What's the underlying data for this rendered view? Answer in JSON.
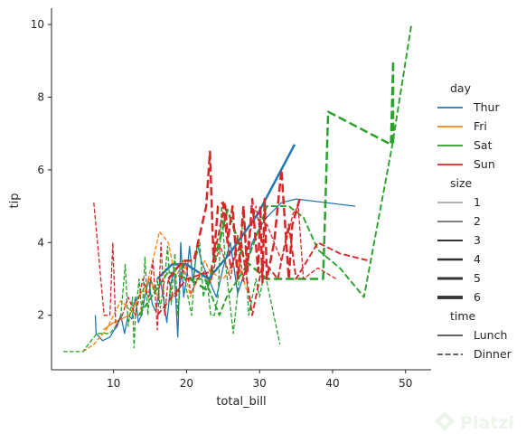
{
  "chart_data": {
    "type": "line",
    "xlabel": "total_bill",
    "ylabel": "tip",
    "xlim": [
      1.5,
      53.5
    ],
    "ylim": [
      0.5,
      10.45
    ],
    "xticks": [
      10,
      20,
      30,
      40,
      50
    ],
    "yticks": [
      2,
      4,
      6,
      8,
      10
    ],
    "grid": false,
    "legend_placement": "right",
    "hue_title": "day",
    "hue": [
      {
        "name": "Thur",
        "color": "#1f77b4"
      },
      {
        "name": "Fri",
        "color": "#ff7f0e"
      },
      {
        "name": "Sat",
        "color": "#2ca02c"
      },
      {
        "name": "Sun",
        "color": "#d62728"
      }
    ],
    "size_title": "size",
    "sizes": [
      {
        "name": "1",
        "width": 0.8
      },
      {
        "name": "2",
        "width": 1.3
      },
      {
        "name": "3",
        "width": 1.9
      },
      {
        "name": "4",
        "width": 2.5
      },
      {
        "name": "5",
        "width": 3.1
      },
      {
        "name": "6",
        "width": 3.7
      }
    ],
    "style_title": "time",
    "styles": [
      {
        "name": "Lunch",
        "dash": "solid"
      },
      {
        "name": "Dinner",
        "dash": "dashed"
      }
    ],
    "series": [
      {
        "day": "Thur",
        "time": "Lunch",
        "size": "2",
        "points": [
          [
            7.5,
            2.0
          ],
          [
            7.6,
            1.5
          ],
          [
            8.5,
            1.3
          ],
          [
            9.5,
            1.4
          ],
          [
            10.1,
            1.6
          ],
          [
            10.5,
            1.7
          ],
          [
            11.0,
            2.0
          ],
          [
            11.5,
            1.5
          ],
          [
            12.0,
            2.0
          ],
          [
            12.5,
            1.9
          ],
          [
            13.0,
            2.5
          ],
          [
            13.4,
            1.8
          ],
          [
            13.8,
            2.0
          ],
          [
            14.3,
            2.5
          ],
          [
            14.8,
            3.0
          ],
          [
            15.3,
            2.3
          ],
          [
            15.8,
            2.1
          ],
          [
            16.4,
            3.0
          ],
          [
            16.8,
            2.5
          ],
          [
            17.3,
            1.8
          ],
          [
            17.8,
            2.8
          ],
          [
            18.3,
            3.3
          ],
          [
            18.8,
            1.4
          ],
          [
            19.2,
            4.0
          ],
          [
            19.6,
            2.5
          ],
          [
            20.0,
            3.0
          ],
          [
            20.4,
            3.9
          ],
          [
            20.9,
            2.9
          ],
          [
            21.5,
            4.0
          ],
          [
            22.0,
            3.5
          ],
          [
            23.0,
            3.0
          ],
          [
            24.1,
            2.5
          ],
          [
            25.0,
            3.3
          ],
          [
            26.0,
            4.0
          ],
          [
            27.0,
            2.6
          ],
          [
            28.0,
            3.2
          ],
          [
            29.0,
            4.0
          ],
          [
            30.0,
            4.4
          ],
          [
            31.0,
            4.7
          ],
          [
            33.0,
            5.1
          ],
          [
            35.0,
            5.2
          ],
          [
            43.1,
            5.0
          ]
        ]
      },
      {
        "day": "Thur",
        "time": "Lunch",
        "size": "4",
        "points": [
          [
            16.0,
            3.0
          ],
          [
            18.0,
            3.4
          ],
          [
            20.0,
            3.4
          ],
          [
            23.0,
            3.0
          ],
          [
            25.9,
            3.7
          ],
          [
            29.8,
            4.8
          ],
          [
            34.8,
            6.7
          ]
        ]
      },
      {
        "day": "Fri",
        "time": "Lunch",
        "size": "2",
        "points": [
          [
            8.6,
            1.6
          ],
          [
            10.0,
            1.8
          ],
          [
            12.2,
            2.0
          ],
          [
            13.4,
            2.5
          ],
          [
            15.0,
            3.0
          ],
          [
            16.3,
            2.4
          ]
        ]
      },
      {
        "day": "Fri",
        "time": "Dinner",
        "size": "2",
        "points": [
          [
            5.8,
            1.0
          ],
          [
            7.3,
            1.2
          ],
          [
            9.0,
            1.6
          ],
          [
            11.0,
            2.4
          ],
          [
            12.5,
            2.1
          ],
          [
            13.5,
            2.0
          ],
          [
            15.0,
            3.2
          ],
          [
            16.3,
            4.3
          ],
          [
            17.5,
            4.0
          ],
          [
            18.5,
            3.0
          ],
          [
            19.5,
            3.5
          ],
          [
            20.5,
            2.5
          ],
          [
            22.5,
            3.5
          ],
          [
            23.2,
            3.2
          ],
          [
            25.0,
            3.0
          ],
          [
            27.0,
            3.5
          ],
          [
            28.2,
            2.7
          ]
        ]
      },
      {
        "day": "Sat",
        "time": "Dinner",
        "size": "2",
        "points": [
          [
            3.1,
            1.0
          ],
          [
            5.8,
            1.0
          ],
          [
            7.7,
            1.5
          ],
          [
            9.5,
            1.5
          ],
          [
            10.3,
            1.7
          ],
          [
            11.0,
            2.0
          ],
          [
            11.6,
            3.4
          ],
          [
            12.0,
            1.7
          ],
          [
            12.6,
            2.5
          ],
          [
            12.8,
            1.1
          ],
          [
            13.0,
            2.0
          ],
          [
            13.5,
            3.0
          ],
          [
            13.9,
            2.0
          ],
          [
            14.3,
            3.6
          ],
          [
            14.7,
            2.0
          ],
          [
            15.1,
            3.0
          ],
          [
            15.6,
            2.6
          ],
          [
            16.0,
            3.0
          ],
          [
            16.4,
            2.2
          ],
          [
            17.0,
            3.0
          ],
          [
            17.4,
            3.9
          ],
          [
            17.9,
            2.3
          ],
          [
            18.4,
            3.7
          ],
          [
            18.8,
            2.0
          ],
          [
            19.4,
            3.5
          ],
          [
            20.0,
            2.7
          ],
          [
            20.7,
            2.0
          ],
          [
            21.2,
            3.5
          ],
          [
            21.8,
            4.0
          ],
          [
            22.3,
            2.5
          ],
          [
            22.8,
            3.0
          ],
          [
            23.3,
            2.0
          ],
          [
            23.8,
            2.0
          ],
          [
            24.3,
            2.5
          ],
          [
            24.8,
            5.0
          ],
          [
            25.3,
            3.5
          ],
          [
            26.4,
            1.5
          ],
          [
            27.2,
            3.0
          ],
          [
            27.8,
            5.0
          ],
          [
            28.5,
            2.0
          ],
          [
            29.5,
            3.0
          ],
          [
            30.0,
            2.5
          ],
          [
            30.5,
            3.0
          ],
          [
            30.9,
            3.0
          ],
          [
            32.8,
            1.2
          ]
        ]
      },
      {
        "day": "Sat",
        "time": "Dinner",
        "size": "3",
        "points": [
          [
            13.5,
            2.0
          ],
          [
            15.5,
            2.6
          ],
          [
            17.5,
            3.2
          ],
          [
            20.0,
            3.0
          ],
          [
            22.5,
            3.0
          ],
          [
            24.5,
            2.0
          ],
          [
            25.5,
            2.5
          ],
          [
            28.0,
            3.3
          ],
          [
            31.0,
            5.0
          ],
          [
            34.0,
            5.0
          ],
          [
            36.0,
            4.7
          ],
          [
            38.0,
            3.8
          ],
          [
            41.0,
            3.3
          ],
          [
            44.3,
            2.5
          ],
          [
            48.2,
            6.7
          ],
          [
            50.8,
            10.0
          ]
        ]
      },
      {
        "day": "Sat",
        "time": "Dinner",
        "size": "4",
        "points": [
          [
            20.4,
            3.0
          ],
          [
            22.8,
            2.7
          ],
          [
            25.6,
            4.9
          ],
          [
            28.0,
            3.5
          ],
          [
            31.0,
            3.0
          ],
          [
            36.0,
            3.0
          ],
          [
            38.7,
            3.0
          ],
          [
            39.4,
            7.6
          ],
          [
            48.0,
            6.7
          ],
          [
            48.3,
            9.0
          ],
          [
            48.3,
            6.7
          ]
        ]
      },
      {
        "day": "Sun",
        "time": "Dinner",
        "size": "2",
        "points": [
          [
            7.3,
            5.1
          ],
          [
            8.7,
            2.0
          ],
          [
            9.5,
            2.0
          ],
          [
            9.9,
            4.0
          ],
          [
            10.3,
            1.7
          ],
          [
            11.2,
            2.0
          ],
          [
            12.0,
            2.5
          ],
          [
            13.0,
            2.0
          ],
          [
            14.0,
            3.0
          ],
          [
            14.8,
            2.5
          ],
          [
            15.4,
            3.5
          ],
          [
            16.0,
            1.6
          ],
          [
            16.5,
            4.0
          ],
          [
            17.0,
            2.0
          ],
          [
            17.5,
            3.0
          ],
          [
            18.2,
            2.5
          ],
          [
            18.8,
            2.6
          ],
          [
            19.8,
            3.5
          ],
          [
            20.6,
            2.6
          ],
          [
            21.5,
            3.0
          ],
          [
            22.4,
            3.2
          ],
          [
            23.3,
            2.9
          ],
          [
            24.0,
            3.5
          ],
          [
            24.6,
            3.9
          ],
          [
            25.3,
            3.5
          ],
          [
            26.0,
            3.0
          ],
          [
            27.0,
            4.2
          ],
          [
            27.8,
            2.9
          ],
          [
            28.4,
            4.0
          ],
          [
            29.5,
            5.0
          ],
          [
            30.3,
            4.0
          ],
          [
            31.0,
            4.5
          ],
          [
            33.0,
            3.5
          ],
          [
            34.6,
            4.8
          ],
          [
            35.3,
            5.0
          ],
          [
            36.0,
            3.0
          ],
          [
            38.0,
            3.3
          ],
          [
            40.5,
            3.0
          ]
        ]
      },
      {
        "day": "Sun",
        "time": "Dinner",
        "size": "3",
        "points": [
          [
            16.0,
            2.0
          ],
          [
            20.0,
            3.0
          ],
          [
            23.3,
            3.2
          ],
          [
            25.3,
            5.1
          ],
          [
            26.0,
            3.3
          ],
          [
            27.5,
            4.0
          ],
          [
            29.0,
            2.0
          ],
          [
            30.5,
            3.5
          ],
          [
            32.5,
            3.0
          ],
          [
            34.0,
            4.5
          ],
          [
            35.0,
            3.0
          ],
          [
            38.0,
            4.0
          ],
          [
            41.0,
            3.7
          ],
          [
            45.0,
            3.5
          ]
        ]
      },
      {
        "day": "Sun",
        "time": "Dinner",
        "size": "4",
        "points": [
          [
            17.5,
            3.0
          ],
          [
            19.5,
            3.5
          ],
          [
            21.0,
            3.5
          ],
          [
            22.7,
            5.0
          ],
          [
            23.2,
            6.5
          ],
          [
            23.7,
            3.5
          ],
          [
            24.3,
            5.0
          ],
          [
            25.0,
            5.1
          ],
          [
            25.6,
            4.0
          ],
          [
            26.3,
            5.0
          ],
          [
            27.0,
            3.0
          ],
          [
            27.8,
            5.0
          ],
          [
            28.3,
            3.2
          ],
          [
            29.0,
            5.2
          ],
          [
            29.8,
            3.2
          ],
          [
            30.1,
            5.0
          ],
          [
            30.4,
            2.9
          ],
          [
            30.7,
            5.2
          ],
          [
            31.0,
            3.0
          ],
          [
            32.0,
            4.0
          ],
          [
            33.0,
            6.0
          ],
          [
            34.0,
            3.0
          ],
          [
            34.5,
            4.5
          ],
          [
            35.5,
            5.2
          ]
        ]
      }
    ]
  }
}
